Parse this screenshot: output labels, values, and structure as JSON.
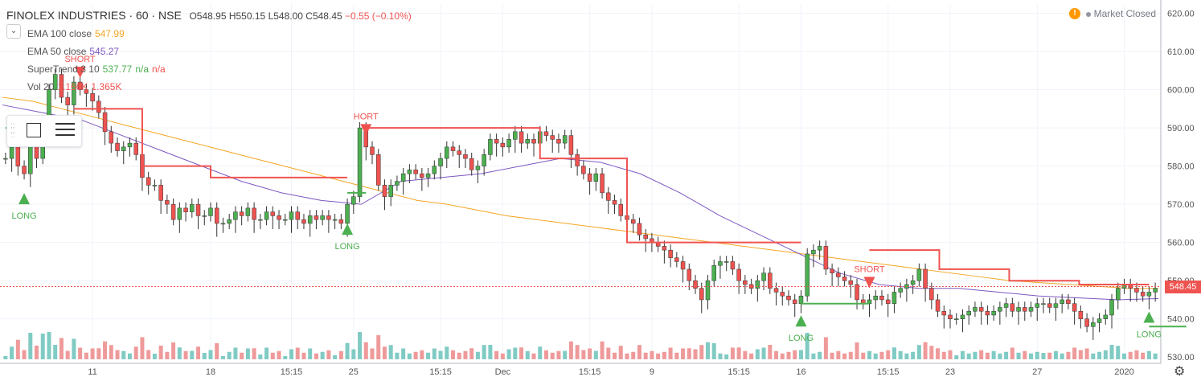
{
  "header": {
    "symbol": "FINOLEX INDUSTRIES · 60 · NSE",
    "open": "O548.95",
    "high": "H550.15",
    "low": "L548.00",
    "close": "C548.45",
    "change": "−0.55 (−0.10%)"
  },
  "indicators": [
    {
      "label": "EMA 100 close",
      "value": "547.99",
      "color": "#f5a623"
    },
    {
      "label": "EMA 50 close",
      "value": "545.27",
      "color": "#7e57c2"
    },
    {
      "label": "SuperTrend 3 10",
      "value": "537.77",
      "value2": "n/a",
      "value3": "n/a",
      "color": "#4caf50",
      "color2": "#ef5350"
    },
    {
      "label": "Vol 20",
      "value": "1.166K",
      "value2": "1.365K",
      "color": "#ef5350"
    }
  ],
  "status": {
    "market": "Market Closed",
    "warning_icon": "!"
  },
  "price_tag": "548.45",
  "colors": {
    "up": "#26a69a",
    "down": "#ef5350",
    "candle_up": "#4caf50",
    "ema100": "#f5a623",
    "ema50": "#7e57c2",
    "supertrend_up": "#4caf50",
    "supertrend_down": "#ef5350",
    "vol_up": "#80cbc4",
    "vol_down": "#ef9a9a"
  },
  "chart_data": {
    "type": "candlestick",
    "title": "FINOLEX INDUSTRIES · 60 · NSE",
    "ylim": [
      529,
      622
    ],
    "y_ticks": [
      530,
      540,
      550,
      560,
      570,
      580,
      590,
      600,
      610,
      620
    ],
    "x_tick_labels": [
      "11",
      "18",
      "15:15",
      "25",
      "15:15",
      "Dec",
      "15:15",
      "9",
      "15:15",
      "16",
      "15:15",
      "23",
      "27",
      "2020"
    ],
    "x_tick_bar_index": [
      14,
      33,
      46,
      56,
      70,
      80,
      94,
      104,
      118,
      128,
      142,
      152,
      166,
      180
    ],
    "close_series": [
      582,
      585,
      580,
      578,
      586,
      582,
      590,
      600,
      604,
      598,
      596,
      602,
      600,
      599,
      597,
      594,
      589,
      586,
      584,
      585,
      586,
      583,
      577,
      575,
      575,
      571,
      570,
      566,
      569,
      568,
      570,
      567,
      567,
      569,
      565,
      565,
      566,
      568,
      567,
      569,
      566,
      566,
      568,
      567,
      566,
      566,
      568,
      566,
      565,
      567,
      566,
      567,
      566,
      566,
      565,
      570,
      572,
      590,
      585,
      583,
      575,
      572,
      575,
      576,
      578,
      579,
      578,
      577,
      578,
      580,
      582,
      585,
      584,
      583,
      582,
      579,
      580,
      583,
      587,
      586,
      585,
      587,
      589,
      586,
      587,
      586,
      589,
      588,
      587,
      586,
      588,
      583,
      580,
      578,
      576,
      578,
      573,
      571,
      570,
      567,
      566,
      565,
      562,
      561,
      560,
      559,
      558,
      556,
      555,
      553,
      550,
      548,
      545,
      550,
      554,
      555,
      555,
      553,
      550,
      549,
      548,
      550,
      552,
      548,
      547,
      546,
      545,
      544,
      546,
      557,
      558,
      559,
      553,
      552,
      551,
      550,
      549,
      545,
      544,
      545,
      546,
      545,
      544,
      547,
      548,
      549,
      550,
      553,
      548,
      545,
      542,
      541,
      540,
      540,
      541,
      542,
      543,
      542,
      541,
      542,
      543,
      544,
      542,
      543,
      542,
      543,
      544,
      544,
      543,
      544,
      545,
      544,
      542,
      540,
      538,
      539,
      540,
      541,
      545,
      548,
      549,
      548,
      547,
      546,
      547,
      548
    ],
    "ema100": [
      598,
      597,
      595,
      593,
      591,
      589,
      587,
      585,
      583,
      581,
      579,
      577,
      575,
      573,
      571,
      570,
      568.5,
      567,
      566,
      565,
      564,
      563,
      562,
      561,
      560,
      559,
      558,
      557,
      556,
      555,
      554,
      553,
      552,
      551,
      550,
      549.5,
      549,
      548.5,
      548,
      548
    ],
    "ema50": [
      596,
      594,
      592,
      588,
      584,
      580,
      576,
      573,
      571,
      570,
      576,
      577,
      578,
      580,
      582,
      581,
      578,
      573,
      567,
      562,
      557,
      552,
      549,
      548,
      548,
      547,
      546,
      545.5,
      545,
      545.3
    ],
    "supertrend": [
      {
        "trend": "long",
        "from_bar": 0,
        "to_bar": 11,
        "values": [
          590,
          589
        ]
      },
      {
        "trend": "short",
        "from_bar": 11,
        "to_bar": 55,
        "values": [
          595,
          580,
          577,
          577
        ]
      },
      {
        "trend": "long",
        "from_bar": 55,
        "to_bar": 58,
        "values": [
          573,
          573
        ]
      },
      {
        "trend": "short",
        "from_bar": 58,
        "to_bar": 128,
        "values": [
          590,
          590,
          582,
          560,
          560
        ]
      },
      {
        "trend": "long",
        "from_bar": 128,
        "to_bar": 139,
        "values": [
          544,
          544
        ]
      },
      {
        "trend": "short",
        "from_bar": 139,
        "to_bar": 184,
        "values": [
          558,
          553,
          550,
          549
        ]
      },
      {
        "trend": "long",
        "from_bar": 184,
        "to_bar": 190,
        "values": [
          538,
          538
        ]
      }
    ],
    "signals": [
      {
        "label": "LONG",
        "bar": 3,
        "type": "long"
      },
      {
        "label": "SHORT",
        "bar": 12,
        "type": "short"
      },
      {
        "label": "LONG",
        "bar": 55,
        "type": "long"
      },
      {
        "label": "HORT",
        "bar": 58,
        "type": "short"
      },
      {
        "label": "LONG",
        "bar": 128,
        "type": "long"
      },
      {
        "label": "SHORT",
        "bar": 139,
        "type": "short"
      },
      {
        "label": "LONG",
        "bar": 184,
        "type": "long"
      }
    ],
    "last_price": 548.45
  }
}
